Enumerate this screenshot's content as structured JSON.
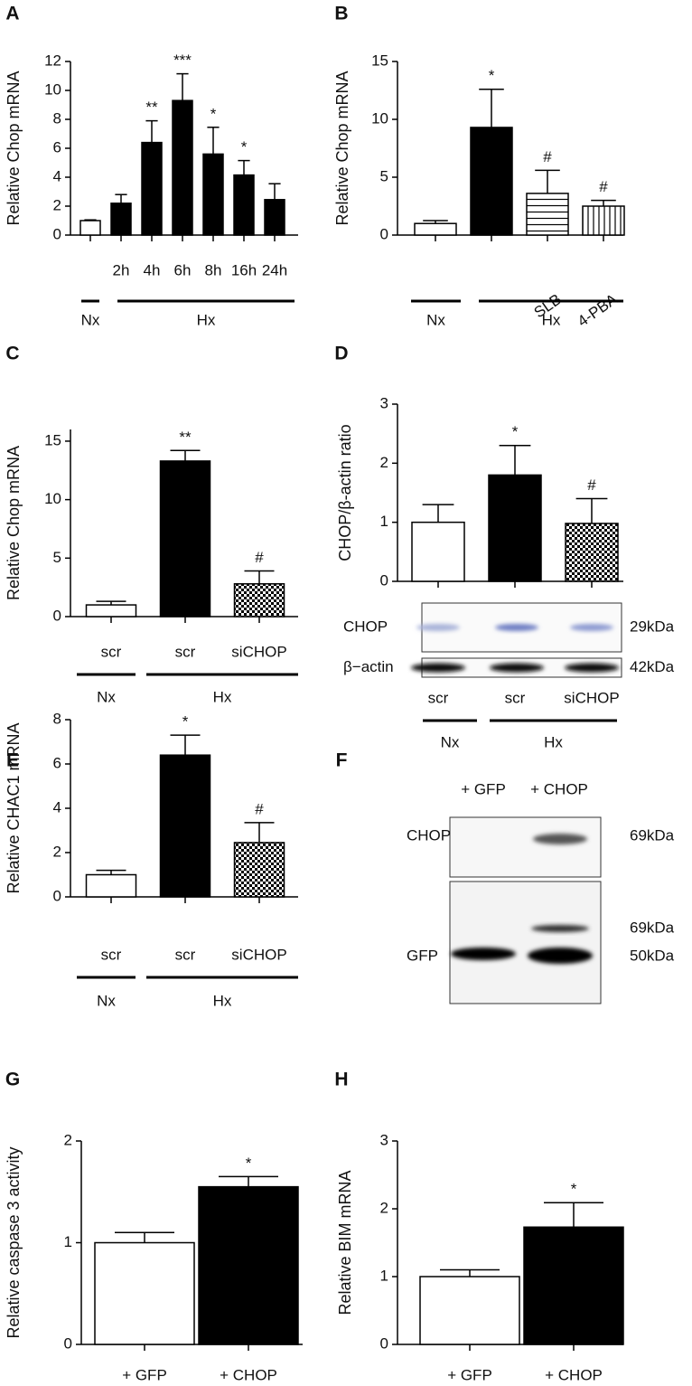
{
  "chart_data": [
    {
      "type": "bar",
      "panel": "A",
      "ylabel": "Relative Chop mRNA",
      "categories": [
        null,
        "2h",
        "4h",
        "6h",
        "8h",
        "16h",
        "24h"
      ],
      "values": [
        1,
        2.2,
        6.4,
        9.3,
        5.6,
        4.15,
        2.45
      ],
      "errors": [
        0.05,
        0.6,
        1.5,
        1.85,
        1.85,
        1.0,
        1.1
      ],
      "significance": [
        null,
        null,
        "**",
        "***",
        "*",
        "*",
        null
      ],
      "fills": [
        "#ffffff",
        "#000000",
        "#000000",
        "#000000",
        "#000000",
        "#000000",
        "#000000"
      ],
      "ylim": [
        0,
        12
      ],
      "yticks": [
        0,
        2,
        4,
        6,
        8,
        10,
        12
      ],
      "groups": [
        {
          "label": "Nx"
        },
        {
          "label": "Hx"
        }
      ]
    },
    {
      "type": "bar",
      "panel": "B",
      "ylabel": "Relative Chop mRNA",
      "categories": [
        null,
        null,
        "SLB",
        "4-PBA"
      ],
      "values": [
        1,
        9.3,
        3.6,
        2.5
      ],
      "errors": [
        0.25,
        3.3,
        2.0,
        0.5
      ],
      "significance": [
        null,
        "*",
        "#",
        "#"
      ],
      "fills": [
        "#ffffff",
        "#000000",
        "hatch-h",
        "hatch-v"
      ],
      "ylim": [
        0,
        15
      ],
      "yticks": [
        0,
        5,
        10,
        15
      ],
      "groups": [
        {
          "label": "Nx"
        },
        {
          "label": "Hx"
        }
      ]
    },
    {
      "type": "bar",
      "panel": "C",
      "ylabel": "Relative Chop mRNA",
      "categories": [
        "scr",
        "scr",
        "siCHOP"
      ],
      "values": [
        1,
        13.3,
        2.8
      ],
      "errors": [
        0.3,
        0.9,
        1.1
      ],
      "significance": [
        null,
        "**",
        "#"
      ],
      "fills": [
        "#ffffff",
        "#000000",
        "checker"
      ],
      "ylim": [
        0,
        16
      ],
      "yticks": [
        0,
        5,
        10,
        15
      ],
      "groups": [
        {
          "label": "Nx"
        },
        {
          "label": "Hx"
        }
      ]
    },
    {
      "type": "bar",
      "panel": "D",
      "ylabel": "CHOP/β-actin ratio",
      "categories": [
        "scr",
        "scr",
        "siCHOP"
      ],
      "values": [
        1,
        1.8,
        0.98
      ],
      "errors": [
        0.3,
        0.5,
        0.42
      ],
      "significance": [
        null,
        "*",
        "#"
      ],
      "fills": [
        "#ffffff",
        "#000000",
        "checker"
      ],
      "ylim": [
        0,
        3
      ],
      "yticks": [
        0,
        1,
        2,
        3
      ],
      "groups": [
        {
          "label": "Nx"
        },
        {
          "label": "Hx"
        }
      ],
      "blot": [
        {
          "label": "CHOP",
          "size": "29kDa"
        },
        {
          "label": "β−actin",
          "size": "42kDa"
        }
      ]
    },
    {
      "type": "bar",
      "panel": "E",
      "ylabel": "Relative CHAC1 mRNA",
      "categories": [
        "scr",
        "scr",
        "siCHOP"
      ],
      "values": [
        1,
        6.4,
        2.45
      ],
      "errors": [
        0.2,
        0.9,
        0.9
      ],
      "significance": [
        null,
        "*",
        "#"
      ],
      "fills": [
        "#ffffff",
        "#000000",
        "checker"
      ],
      "ylim": [
        0,
        8
      ],
      "yticks": [
        0,
        2,
        4,
        6,
        8
      ],
      "groups": [
        {
          "label": "Nx"
        },
        {
          "label": "Hx"
        }
      ]
    },
    {
      "type": "blot",
      "panel": "F",
      "lanes": [
        "+ GFP",
        "+ CHOP"
      ],
      "rows": [
        {
          "label": "CHOP",
          "sizes": [
            "69kDa"
          ]
        },
        {
          "label": "GFP",
          "sizes": [
            "69kDa",
            "50kDa"
          ]
        }
      ]
    },
    {
      "type": "bar",
      "panel": "G",
      "ylabel": "Relative caspase 3 activity",
      "categories": [
        "+ GFP",
        "+ CHOP"
      ],
      "values": [
        1,
        1.55
      ],
      "errors": [
        0.1,
        0.1
      ],
      "significance": [
        null,
        "*"
      ],
      "fills": [
        "#ffffff",
        "#000000"
      ],
      "ylim": [
        0,
        2
      ],
      "yticks": [
        0,
        1,
        2
      ]
    },
    {
      "type": "bar",
      "panel": "H",
      "ylabel": "Relative BIM mRNA",
      "categories": [
        "+ GFP",
        "+ CHOP"
      ],
      "values": [
        1,
        1.73
      ],
      "errors": [
        0.1,
        0.36
      ],
      "significance": [
        null,
        "*"
      ],
      "fills": [
        "#ffffff",
        "#000000"
      ],
      "ylim": [
        0,
        3
      ],
      "yticks": [
        0,
        1,
        2,
        3
      ]
    }
  ]
}
